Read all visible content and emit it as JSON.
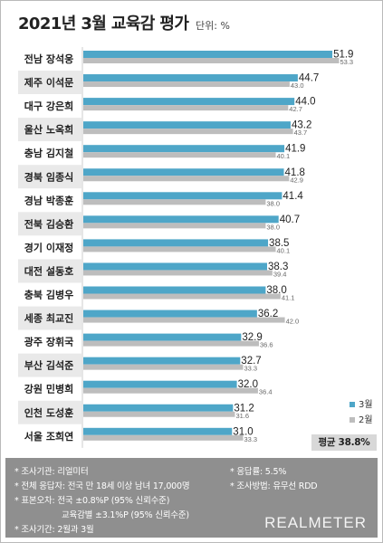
{
  "title": "2021년 3월 교육감 평가",
  "unit": "단위: %",
  "colors": {
    "march": "#4ea6c8",
    "february": "#bdbdbd",
    "name_band_light": "#ffffff",
    "name_band_dark": "#e9e9e9",
    "footer_bg": "#8f8f8f"
  },
  "chart_data": {
    "type": "bar",
    "orientation": "horizontal",
    "categories": [
      "전남 장석웅",
      "제주 이석문",
      "대구 강은희",
      "울산 노옥희",
      "충남 김지철",
      "경북 임종식",
      "경남 박종훈",
      "전북 김승환",
      "경기 이재정",
      "대전 설동호",
      "충북 김병우",
      "세종 최교진",
      "광주 장휘국",
      "부산 김석준",
      "강원 민병희",
      "인천 도성훈",
      "서울 조희연"
    ],
    "series": [
      {
        "name": "3월",
        "values": [
          51.9,
          44.7,
          44.0,
          43.2,
          41.9,
          41.8,
          41.4,
          40.7,
          38.5,
          38.3,
          38.0,
          36.2,
          32.9,
          32.7,
          32.0,
          31.2,
          31.0
        ]
      },
      {
        "name": "2월",
        "values": [
          53.3,
          43.0,
          42.7,
          43.7,
          40.1,
          42.9,
          38.0,
          38.0,
          40.1,
          39.4,
          41.1,
          42.0,
          36.6,
          33.3,
          36.4,
          31.6,
          33.3
        ]
      }
    ],
    "legend": {
      "position": "bottom-right",
      "entries": [
        "3월",
        "2월"
      ]
    },
    "average_label": "평균 38.8%",
    "xlim": [
      0,
      55
    ],
    "grid": false
  },
  "footer": {
    "lines": [
      "* 조사기관: 리얼미터",
      "* 전체 응답자: 전국 만 18세 이상 남녀 17,000명",
      "* 표본오차: 전국 ±0.8%P (95% 신뢰수준)",
      "교육감별 ±3.1%P (95% 신뢰수준)",
      "* 조사기간: 2월과 3월"
    ],
    "right_lines": [
      "* 응답률: 5.5%",
      "* 조사방법: 유무선 RDD"
    ],
    "brand": "REALMETER"
  }
}
